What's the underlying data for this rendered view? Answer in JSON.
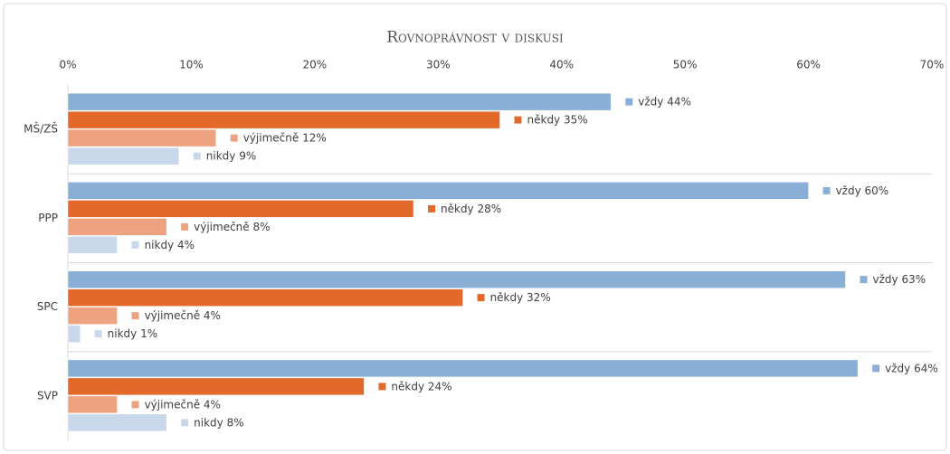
{
  "chart_data": {
    "type": "bar",
    "orientation": "horizontal",
    "title": "Rovnoprávnost v diskusi",
    "categories": [
      "MŠ/ZŠ",
      "PPP",
      "SPC",
      "SVP"
    ],
    "series": [
      {
        "name": "vždy",
        "color": "#8aafd6",
        "values": [
          44,
          60,
          63,
          64
        ],
        "value_labels": [
          "44%",
          "60%",
          "63%",
          "64%"
        ]
      },
      {
        "name": "někdy",
        "color": "#e2692a",
        "values": [
          35,
          28,
          32,
          24
        ],
        "value_labels": [
          "35%",
          "28%",
          "32%",
          "24%"
        ]
      },
      {
        "name": "výjimečně",
        "color": "#efa27f",
        "values": [
          12,
          8,
          4,
          4
        ],
        "value_labels": [
          "12%",
          "8%",
          "4%",
          "4%"
        ]
      },
      {
        "name": "nikdy",
        "color": "#c8d8ea",
        "values": [
          9,
          4,
          1,
          8
        ],
        "value_labels": [
          "9%",
          "4%",
          "1%",
          "8%"
        ]
      }
    ],
    "xlim": [
      0,
      70
    ],
    "xticks": [
      {
        "value": 0,
        "label": "0%"
      },
      {
        "value": 10,
        "label": "10%"
      },
      {
        "value": 20,
        "label": "20%"
      },
      {
        "value": 30,
        "label": "30%"
      },
      {
        "value": 40,
        "label": "40%"
      },
      {
        "value": 50,
        "label": "50%"
      },
      {
        "value": 60,
        "label": "60%"
      },
      {
        "value": 70,
        "label": "70%"
      }
    ],
    "grid": false
  }
}
